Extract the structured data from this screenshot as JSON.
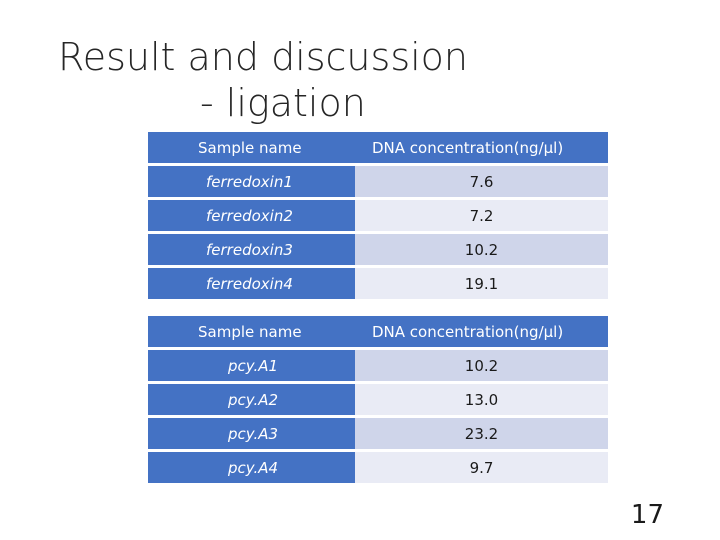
{
  "slide": {
    "title_line1": "Result and discussion",
    "title_line2": "- ligation",
    "page_number": "17"
  },
  "table1": {
    "header": [
      "Sample name",
      "DNA concentration(ng/μl)"
    ],
    "rows": [
      {
        "name": "ferredoxin1",
        "value": "7.6"
      },
      {
        "name": "ferredoxin2",
        "value": "7.2"
      },
      {
        "name": "ferredoxin3",
        "value": "10.2"
      },
      {
        "name": "ferredoxin4",
        "value": "19.1"
      }
    ]
  },
  "table2": {
    "header": [
      "Sample name",
      "DNA concentration(ng/μl)"
    ],
    "rows": [
      {
        "name": "pcy.A1",
        "value": "10.2"
      },
      {
        "name": "pcy.A2",
        "value": "13.0"
      },
      {
        "name": "pcy.A3",
        "value": "23.2"
      },
      {
        "name": "pcy.A4",
        "value": "9.7"
      }
    ]
  },
  "colors": {
    "header_blue": "#4472c4",
    "row_band_dark": "#cfd5ea",
    "row_band_light": "#e9ebf5"
  }
}
